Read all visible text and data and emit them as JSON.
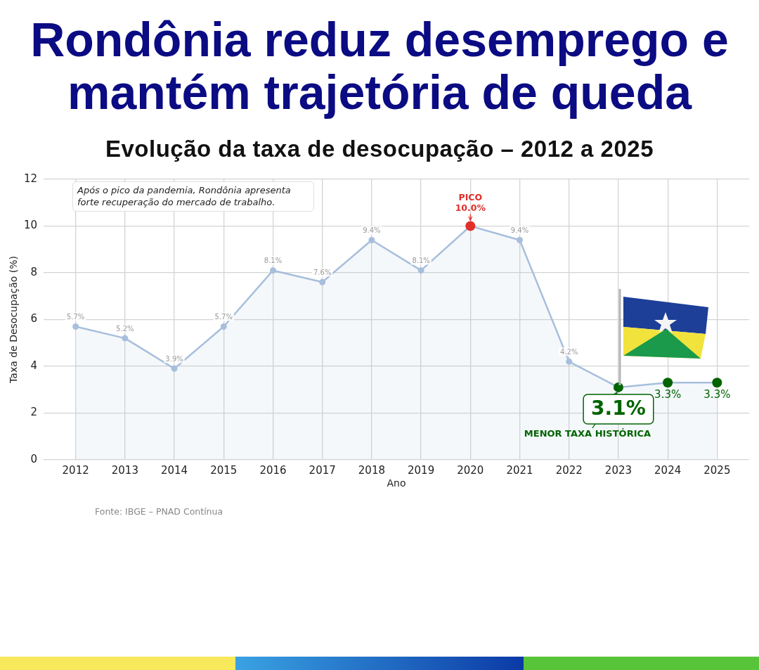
{
  "chart_data": {
    "type": "area",
    "title": "Rondônia reduz desemprego e mantém trajetória de queda",
    "subtitle": "Evolução da taxa de desocupação – 2012 a 2025",
    "xlabel": "Ano",
    "ylabel": "Taxa de Desocupação (%)",
    "x": [
      2012,
      2013,
      2014,
      2015,
      2016,
      2017,
      2018,
      2019,
      2020,
      2021,
      2022,
      2023,
      2024,
      2025
    ],
    "series": [
      {
        "color": "#a7bfdc",
        "colors": [
          "#a7bfdc",
          "#a7bfdc",
          "#a7bfdc",
          "#a7bfdc",
          "#a7bfdc",
          "#a7bfdc",
          "#a7bfdc",
          "#a7bfdc",
          "#e0302a",
          "#a7bfdc",
          "#a7bfdc",
          "#006400",
          "#006400",
          "#006400"
        ],
        "values": [
          5.7,
          5.2,
          3.9,
          5.7,
          8.1,
          7.6,
          9.4,
          8.1,
          10.0,
          9.4,
          4.2,
          3.1,
          3.3,
          3.3
        ],
        "value_labels": [
          "5.7%",
          "5.2%",
          "3.9%",
          "5.7%",
          "8.1%",
          "7.6%",
          "9.4%",
          "8.1%",
          "10.0%",
          "9.4%",
          "4.2%",
          "3.1%",
          "3.3%",
          "3.3%"
        ]
      }
    ],
    "xlim": [
      2011.35,
      2025.65
    ],
    "xticks": [
      2012,
      2013,
      2014,
      2015,
      2016,
      2017,
      2018,
      2019,
      2020,
      2021,
      2022,
      2023,
      2024,
      2025
    ],
    "ylim": [
      0,
      12
    ],
    "yticks": [
      0,
      2,
      4,
      6,
      8,
      10,
      12
    ],
    "grid": true,
    "legend": false,
    "marker": "circle",
    "annotations": [
      "Após o pico da pandemia, Rondônia apresenta forte recuperação do mercado de trabalho.",
      {
        "text": "PICO",
        "x": 2020,
        "y": 10.0
      },
      {
        "text": "MENOR TAXA HISTÓRICA",
        "x": 2023,
        "y": 3.1
      },
      "Fonte: IBGE – PNAD Contínua"
    ]
  }
}
